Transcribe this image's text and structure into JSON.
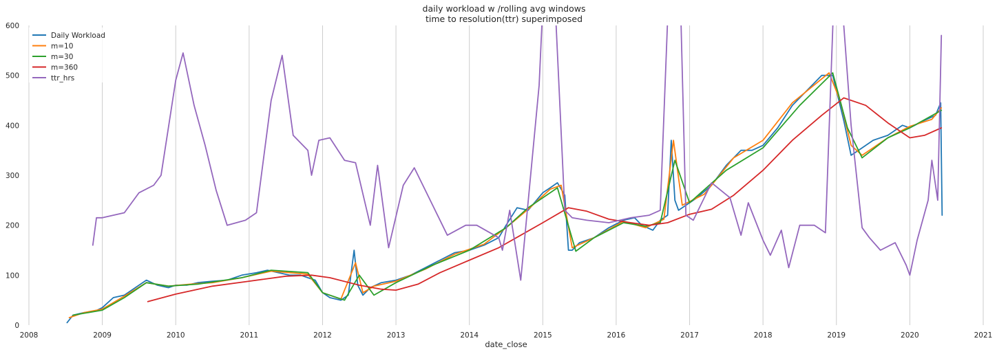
{
  "chart_data": {
    "type": "line",
    "title_line1": "daily workload w /rolling avg windows",
    "title_line2": "time to resolution(ttr) superimposed",
    "xlabel": "date_close",
    "ylabel": "",
    "xlim": [
      2008.0,
      2021.0
    ],
    "ylim": [
      0,
      600
    ],
    "x_ticks": [
      "2008",
      "2009",
      "2010",
      "2011",
      "2012",
      "2013",
      "2014",
      "2015",
      "2016",
      "2017",
      "2018",
      "2019",
      "2020",
      "2021"
    ],
    "y_ticks": [
      "0",
      "100",
      "200",
      "300",
      "400",
      "500",
      "600"
    ],
    "grid": "vertical",
    "legend_position": "top-left",
    "series": [
      {
        "name": "Daily Workload",
        "color": "#1f77b4",
        "x": [
          2008.52,
          2008.6,
          2008.75,
          2008.9,
          2009.0,
          2009.15,
          2009.3,
          2009.5,
          2009.6,
          2009.75,
          2009.9,
          2010.0,
          2010.15,
          2010.3,
          2010.5,
          2010.7,
          2010.9,
          2011.1,
          2011.25,
          2011.4,
          2011.55,
          2011.7,
          2011.8,
          2011.9,
          2012.0,
          2012.1,
          2012.25,
          2012.35,
          2012.43,
          2012.48,
          2012.55,
          2012.65,
          2012.8,
          2013.0,
          2013.2,
          2013.4,
          2013.6,
          2013.8,
          2014.0,
          2014.2,
          2014.4,
          2014.5,
          2014.65,
          2014.8,
          2015.0,
          2015.1,
          2015.2,
          2015.3,
          2015.35,
          2015.4,
          2015.5,
          2015.7,
          2015.9,
          2016.1,
          2016.25,
          2016.35,
          2016.5,
          2016.6,
          2016.7,
          2016.75,
          2016.8,
          2016.85,
          2016.95,
          2017.1,
          2017.3,
          2017.5,
          2017.7,
          2017.85,
          2018.0,
          2018.2,
          2018.4,
          2018.6,
          2018.8,
          2018.95,
          2019.0,
          2019.1,
          2019.2,
          2019.3,
          2019.5,
          2019.7,
          2019.9,
          2020.0,
          2020.2,
          2020.35,
          2020.42,
          2020.44
        ],
        "y": [
          5,
          20,
          25,
          28,
          35,
          55,
          60,
          80,
          90,
          80,
          75,
          80,
          80,
          85,
          88,
          90,
          100,
          105,
          110,
          105,
          100,
          100,
          95,
          90,
          65,
          55,
          50,
          60,
          150,
          80,
          60,
          75,
          85,
          90,
          100,
          115,
          130,
          145,
          150,
          160,
          175,
          200,
          235,
          230,
          265,
          275,
          285,
          260,
          150,
          150,
          165,
          175,
          195,
          210,
          215,
          200,
          190,
          210,
          220,
          370,
          250,
          230,
          240,
          255,
          280,
          320,
          350,
          350,
          360,
          395,
          440,
          470,
          500,
          500,
          470,
          410,
          340,
          350,
          370,
          380,
          400,
          395,
          410,
          420,
          445,
          220
        ]
      },
      {
        "name": "m=10",
        "color": "#ff7f0e",
        "x": [
          2008.55,
          2008.75,
          2009.0,
          2009.3,
          2009.6,
          2009.9,
          2010.2,
          2010.5,
          2010.9,
          2011.3,
          2011.8,
          2012.0,
          2012.25,
          2012.45,
          2012.55,
          2012.7,
          2013.0,
          2013.4,
          2013.8,
          2014.2,
          2014.5,
          2014.8,
          2015.1,
          2015.25,
          2015.4,
          2015.7,
          2016.1,
          2016.4,
          2016.65,
          2016.78,
          2016.9,
          2017.2,
          2017.6,
          2018.0,
          2018.4,
          2018.9,
          2019.05,
          2019.2,
          2019.35,
          2019.7,
          2020.0,
          2020.3,
          2020.43
        ],
        "y": [
          15,
          25,
          32,
          58,
          85,
          78,
          82,
          85,
          95,
          108,
          102,
          65,
          52,
          125,
          65,
          78,
          88,
          112,
          142,
          162,
          195,
          232,
          272,
          280,
          155,
          175,
          208,
          195,
          212,
          370,
          240,
          262,
          335,
          370,
          445,
          505,
          450,
          360,
          340,
          375,
          398,
          412,
          435
        ]
      },
      {
        "name": "m=30",
        "color": "#2ca02c",
        "x": [
          2008.6,
          2009.0,
          2009.3,
          2009.6,
          2009.9,
          2010.3,
          2010.9,
          2011.3,
          2011.8,
          2012.0,
          2012.3,
          2012.5,
          2012.7,
          2013.0,
          2013.5,
          2014.0,
          2014.5,
          2014.8,
          2015.2,
          2015.45,
          2015.7,
          2016.1,
          2016.4,
          2016.6,
          2016.8,
          2017.0,
          2017.5,
          2018.0,
          2018.5,
          2018.95,
          2019.15,
          2019.35,
          2019.7,
          2020.0,
          2020.43
        ],
        "y": [
          20,
          30,
          55,
          85,
          78,
          82,
          95,
          110,
          105,
          65,
          50,
          100,
          60,
          85,
          120,
          150,
          195,
          235,
          275,
          148,
          175,
          205,
          198,
          205,
          330,
          245,
          310,
          355,
          440,
          505,
          395,
          335,
          375,
          395,
          430
        ]
      },
      {
        "name": "m=360",
        "color": "#d62728",
        "x": [
          2009.62,
          2010.0,
          2010.5,
          2011.0,
          2011.5,
          2011.85,
          2012.1,
          2012.5,
          2012.8,
          2013.0,
          2013.3,
          2013.6,
          2014.0,
          2014.4,
          2014.7,
          2015.0,
          2015.35,
          2015.6,
          2015.9,
          2016.2,
          2016.45,
          2016.7,
          2017.0,
          2017.3,
          2017.6,
          2018.0,
          2018.4,
          2018.8,
          2019.1,
          2019.4,
          2019.7,
          2020.0,
          2020.2,
          2020.43
        ],
        "y": [
          47,
          62,
          78,
          88,
          98,
          100,
          95,
          80,
          72,
          70,
          82,
          105,
          130,
          155,
          180,
          205,
          235,
          228,
          212,
          205,
          200,
          205,
          222,
          232,
          260,
          310,
          370,
          420,
          455,
          440,
          405,
          375,
          380,
          395
        ]
      },
      {
        "name": "ttr_hrs",
        "color": "#9467bd",
        "x": [
          2008.87,
          2008.92,
          2009.0,
          2009.3,
          2009.5,
          2009.7,
          2009.8,
          2010.0,
          2010.1,
          2010.25,
          2010.4,
          2010.55,
          2010.7,
          2010.95,
          2011.1,
          2011.3,
          2011.45,
          2011.6,
          2011.8,
          2011.85,
          2011.95,
          2012.1,
          2012.3,
          2012.45,
          2012.65,
          2012.75,
          2012.9,
          2013.1,
          2013.25,
          2013.5,
          2013.7,
          2013.95,
          2014.1,
          2014.4,
          2014.45,
          2014.55,
          2014.7,
          2014.95,
          2015.05,
          2015.15,
          2015.3,
          2015.4,
          2015.6,
          2015.9,
          2016.2,
          2016.45,
          2016.6,
          2016.75,
          2016.85,
          2016.95,
          2017.05,
          2017.3,
          2017.55,
          2017.7,
          2017.8,
          2018.0,
          2018.1,
          2018.25,
          2018.35,
          2018.5,
          2018.7,
          2018.85,
          2019.0,
          2019.2,
          2019.35,
          2019.45,
          2019.6,
          2019.8,
          2019.95,
          2020.0,
          2020.1,
          2020.25,
          2020.3,
          2020.38,
          2020.43
        ],
        "y": [
          160,
          215,
          215,
          225,
          265,
          280,
          300,
          490,
          545,
          440,
          360,
          270,
          200,
          210,
          225,
          450,
          540,
          380,
          350,
          300,
          370,
          375,
          330,
          325,
          200,
          320,
          155,
          280,
          315,
          240,
          180,
          200,
          200,
          175,
          150,
          230,
          90,
          480,
          800,
          700,
          230,
          215,
          210,
          205,
          215,
          220,
          230,
          800,
          800,
          220,
          210,
          285,
          255,
          180,
          245,
          170,
          140,
          190,
          115,
          200,
          200,
          185,
          800,
          400,
          195,
          175,
          150,
          165,
          120,
          100,
          170,
          250,
          330,
          250,
          580
        ]
      }
    ]
  }
}
